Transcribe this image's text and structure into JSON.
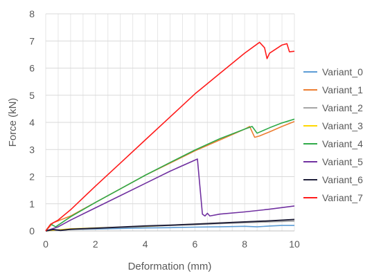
{
  "chart_data": {
    "type": "line",
    "title": "",
    "xlabel": "Deformation (mm)",
    "ylabel": "Force (kN)",
    "xlim": [
      0,
      10
    ],
    "ylim": [
      0,
      8
    ],
    "x_ticks": [
      "0",
      "2",
      "4",
      "6",
      "8",
      "10"
    ],
    "y_ticks": [
      "0",
      "1",
      "2",
      "3",
      "4",
      "5",
      "6",
      "7",
      "8"
    ],
    "grid": "vertical-and-horizontal",
    "legend_position": "right",
    "series": [
      {
        "name": "Variant_0",
        "color": "#5B9BD5",
        "x": [
          0,
          0.5,
          1,
          2,
          3,
          4,
          5,
          6,
          7,
          8,
          8.5,
          9,
          9.5,
          10
        ],
        "y": [
          0,
          0.03,
          0.05,
          0.07,
          0.09,
          0.11,
          0.12,
          0.14,
          0.15,
          0.17,
          0.15,
          0.18,
          0.2,
          0.2
        ]
      },
      {
        "name": "Variant_1",
        "color": "#ED7D31",
        "x": [
          0,
          0.3,
          1,
          2,
          3,
          4,
          5,
          6,
          7,
          8,
          8.2,
          8.4,
          8.6,
          9,
          9.5,
          10
        ],
        "y": [
          0,
          0.3,
          0.55,
          1.05,
          1.55,
          2.05,
          2.5,
          2.95,
          3.35,
          3.75,
          3.85,
          3.45,
          3.5,
          3.65,
          3.85,
          4.03
        ]
      },
      {
        "name": "Variant_2",
        "color": "#A5A5A5",
        "x": [
          0,
          1,
          2,
          3,
          4,
          5,
          6,
          7,
          8,
          9,
          10
        ],
        "y": [
          0,
          0.05,
          0.09,
          0.13,
          0.16,
          0.2,
          0.23,
          0.27,
          0.3,
          0.33,
          0.36
        ]
      },
      {
        "name": "Variant_3",
        "color": "#FFD700",
        "x": [
          0,
          1,
          2,
          3,
          4,
          5,
          6,
          7,
          8,
          9,
          10
        ],
        "y": [
          0,
          0.08,
          0.11,
          0.14,
          0.17,
          0.21,
          0.25,
          0.29,
          0.33,
          0.37,
          0.42
        ]
      },
      {
        "name": "Variant_4",
        "color": "#2EAA48",
        "x": [
          0,
          0.2,
          0.4,
          1,
          2,
          3,
          4,
          5,
          6,
          7,
          8,
          8.3,
          8.5,
          9,
          9.5,
          10
        ],
        "y": [
          0,
          0.25,
          0.15,
          0.52,
          1.05,
          1.55,
          2.05,
          2.52,
          2.98,
          3.4,
          3.75,
          3.85,
          3.6,
          3.8,
          3.98,
          4.12
        ]
      },
      {
        "name": "Variant_5",
        "color": "#7030A0",
        "x": [
          0,
          0.5,
          1,
          2,
          3,
          4,
          5,
          6.1,
          6.3,
          6.4,
          6.5,
          6.6,
          7,
          8,
          9,
          10
        ],
        "y": [
          0,
          0.15,
          0.4,
          0.85,
          1.3,
          1.75,
          2.2,
          2.65,
          0.62,
          0.55,
          0.65,
          0.55,
          0.62,
          0.7,
          0.8,
          0.92
        ]
      },
      {
        "name": "Variant_6",
        "color": "#1F1F3A",
        "x": [
          0,
          0.3,
          0.6,
          1,
          2,
          3,
          4,
          5,
          6,
          7,
          8,
          9,
          10
        ],
        "y": [
          0,
          0.05,
          0.02,
          0.06,
          0.1,
          0.14,
          0.18,
          0.21,
          0.25,
          0.29,
          0.33,
          0.37,
          0.42
        ]
      },
      {
        "name": "Variant_7",
        "color": "#FF1A1A",
        "x": [
          0,
          0.2,
          0.5,
          1,
          2,
          3,
          4,
          5,
          6,
          7,
          8,
          8.6,
          8.8,
          8.9,
          9,
          9.5,
          9.7,
          9.8,
          10
        ],
        "y": [
          0,
          0.25,
          0.4,
          0.78,
          1.65,
          2.5,
          3.35,
          4.2,
          5.05,
          5.8,
          6.55,
          6.95,
          6.75,
          6.35,
          6.55,
          6.85,
          6.9,
          6.6,
          6.62
        ]
      }
    ]
  }
}
